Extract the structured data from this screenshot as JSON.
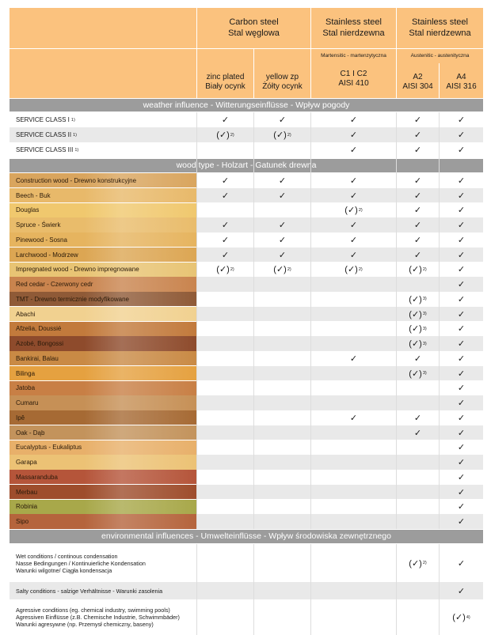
{
  "header": {
    "carbon": {
      "line1": "Carbon steel",
      "line2": "Stal węglowa"
    },
    "stainless1": {
      "line1": "Stainless steel",
      "line2": "Stal nierdzewna"
    },
    "stainless2": {
      "line1": "Stainless steel",
      "line2": "Stal nierdzewna"
    },
    "martensitic": "Martensitic - martenzytyczna",
    "austenitic": "Austenitic - austenityczna",
    "cols": [
      {
        "line1": "zinc plated",
        "line2": "Biały ocynk"
      },
      {
        "line1": "yellow zp",
        "line2": "Żółty ocynk"
      },
      {
        "line1": "C1 I C2",
        "line2": "AISI 410"
      },
      {
        "line1": "A2",
        "line2": "AISI 304"
      },
      {
        "line1": "A4",
        "line2": "AISI 316"
      }
    ]
  },
  "sections": {
    "weather": "weather influence - Witterungseinflüsse - Wpływ pogody",
    "wood": "wood type - Holzart - Gatunek drewna",
    "env": "environmental influences - Umwelteinflüsse - Wpływ środowiska zewnętrznego"
  },
  "weather_rows": [
    {
      "label": "SERVICE CLASS I",
      "sup": "1)",
      "marks": [
        "✓",
        "✓",
        "✓",
        "✓",
        "✓"
      ],
      "notes": [
        "",
        "",
        "",
        "",
        ""
      ]
    },
    {
      "label": "SERVICE CLASS II",
      "sup": "1)",
      "marks": [
        "(✓)",
        "(✓)",
        "✓",
        "✓",
        "✓"
      ],
      "notes": [
        "2)",
        "2)",
        "",
        "",
        ""
      ]
    },
    {
      "label": "SERVICE CLASS III",
      "sup": "1)",
      "marks": [
        "",
        "",
        "✓",
        "✓",
        "✓"
      ],
      "notes": [
        "",
        "",
        "",
        "",
        ""
      ]
    }
  ],
  "wood_rows": [
    {
      "label": "Construction wood - Drewno konstrukcyjne",
      "color": "#d9a55e",
      "marks": [
        "✓",
        "✓",
        "✓",
        "✓",
        "✓"
      ],
      "notes": [
        "",
        "",
        "",
        "",
        ""
      ]
    },
    {
      "label": "Beech - Buk",
      "color": "#e8b96a",
      "marks": [
        "✓",
        "✓",
        "✓",
        "✓",
        "✓"
      ],
      "notes": [
        "",
        "",
        "",
        "",
        ""
      ]
    },
    {
      "label": "Douglas",
      "color": "#f0c86e",
      "marks": [
        "",
        "",
        "(✓)",
        "✓",
        "✓"
      ],
      "notes": [
        "",
        "",
        "2)",
        "",
        ""
      ]
    },
    {
      "label": "Spruce - Świerk",
      "color": "#e9bc6b",
      "marks": [
        "✓",
        "✓",
        "✓",
        "✓",
        "✓"
      ],
      "notes": [
        "",
        "",
        "",
        "",
        ""
      ]
    },
    {
      "label": "Pinewood - Sosna",
      "color": "#e6b45f",
      "marks": [
        "✓",
        "✓",
        "✓",
        "✓",
        "✓"
      ],
      "notes": [
        "",
        "",
        "",
        "",
        ""
      ]
    },
    {
      "label": "Larchwood - Modrzew",
      "color": "#dca653",
      "marks": [
        "✓",
        "✓",
        "✓",
        "✓",
        "✓"
      ],
      "notes": [
        "",
        "",
        "",
        "",
        ""
      ]
    },
    {
      "label": "Impregnated wood - Drewno impregnowane",
      "color": "#e8c474",
      "marks": [
        "(✓)",
        "(✓)",
        "(✓)",
        "(✓)",
        "✓"
      ],
      "notes": [
        "2)",
        "2)",
        "2)",
        "2)",
        ""
      ]
    },
    {
      "label": "Red cedar - Czerwony cedr",
      "color": "#c9844e",
      "marks": [
        "",
        "",
        "",
        "",
        "✓"
      ],
      "notes": [
        "",
        "",
        "",
        "",
        ""
      ]
    },
    {
      "label": "TMT - Drewno termicznie modyfikowane",
      "color": "#8f5a37",
      "marks": [
        "",
        "",
        "",
        "(✓)",
        "✓"
      ],
      "notes": [
        "",
        "",
        "",
        "3)",
        ""
      ]
    },
    {
      "label": "Abachi",
      "color": "#f1d190",
      "marks": [
        "",
        "",
        "",
        "(✓)",
        "✓"
      ],
      "notes": [
        "",
        "",
        "",
        "3)",
        ""
      ]
    },
    {
      "label": "Afzelia, Doussié",
      "color": "#c27a3c",
      "marks": [
        "",
        "",
        "",
        "(✓)",
        "✓"
      ],
      "notes": [
        "",
        "",
        "",
        "3)",
        ""
      ]
    },
    {
      "label": "Azobé, Bongossi",
      "color": "#8e4b2c",
      "marks": [
        "",
        "",
        "",
        "(✓)",
        "✓"
      ],
      "notes": [
        "",
        "",
        "",
        "3)",
        ""
      ]
    },
    {
      "label": "Bankirai, Balau",
      "color": "#c98a45",
      "marks": [
        "",
        "",
        "✓",
        "✓",
        "✓"
      ],
      "notes": [
        "",
        "",
        "",
        "",
        ""
      ]
    },
    {
      "label": "Bilinga",
      "color": "#e5a140",
      "marks": [
        "",
        "",
        "",
        "(✓)",
        "✓"
      ],
      "notes": [
        "",
        "",
        "",
        "3)",
        ""
      ]
    },
    {
      "label": "Jatoba",
      "color": "#c87f45",
      "marks": [
        "",
        "",
        "",
        "",
        "✓"
      ],
      "notes": [
        "",
        "",
        "",
        "",
        ""
      ]
    },
    {
      "label": "Cumaru",
      "color": "#c69056",
      "marks": [
        "",
        "",
        "",
        "",
        "✓"
      ],
      "notes": [
        "",
        "",
        "",
        "",
        ""
      ]
    },
    {
      "label": "Ipê",
      "color": "#a66a34",
      "marks": [
        "",
        "",
        "✓",
        "✓",
        "✓"
      ],
      "notes": [
        "",
        "",
        "",
        "",
        ""
      ]
    },
    {
      "label": "Oak - Dąb",
      "color": "#c3935c",
      "marks": [
        "",
        "",
        "",
        "✓",
        "✓"
      ],
      "notes": [
        "",
        "",
        "",
        "",
        ""
      ]
    },
    {
      "label": "Eucalyptus - Eukaliptus",
      "color": "#e8b06a",
      "marks": [
        "",
        "",
        "",
        "",
        "✓"
      ],
      "notes": [
        "",
        "",
        "",
        "",
        ""
      ]
    },
    {
      "label": "Garapa",
      "color": "#ecc275",
      "marks": [
        "",
        "",
        "",
        "",
        "✓"
      ],
      "notes": [
        "",
        "",
        "",
        "",
        ""
      ]
    },
    {
      "label": "Massaranduba",
      "color": "#b5553a",
      "marks": [
        "",
        "",
        "",
        "",
        "✓"
      ],
      "notes": [
        "",
        "",
        "",
        "",
        ""
      ]
    },
    {
      "label": "Merbau",
      "color": "#9e4d2c",
      "marks": [
        "",
        "",
        "",
        "",
        "✓"
      ],
      "notes": [
        "",
        "",
        "",
        "",
        ""
      ]
    },
    {
      "label": "Robinia",
      "color": "#a8a84a",
      "marks": [
        "",
        "",
        "",
        "",
        "✓"
      ],
      "notes": [
        "",
        "",
        "",
        "",
        ""
      ]
    },
    {
      "label": "Sipo",
      "color": "#b5643c",
      "marks": [
        "",
        "",
        "",
        "",
        "✓"
      ],
      "notes": [
        "",
        "",
        "",
        "",
        ""
      ]
    }
  ],
  "env_rows": [
    {
      "lines": [
        "Wet conditions / continous condensation",
        "Nasse Bedingungen / Kontinuierliche Kondensation",
        "Warunki wilgotne/ Ciągła kondensacja"
      ],
      "marks": [
        "",
        "",
        "",
        "(✓)",
        "✓"
      ],
      "notes": [
        "",
        "",
        "",
        "2)",
        ""
      ]
    },
    {
      "lines": [
        "Salty conditions - salzige Verhältnisse - Warunki zasolenia"
      ],
      "marks": [
        "",
        "",
        "",
        "",
        "✓"
      ],
      "notes": [
        "",
        "",
        "",
        "",
        ""
      ]
    },
    {
      "lines": [
        "Agressive conditions (eg. chemical industry, swimming pools)",
        "Agressiven Einflüsse (z.B. Chemische Industrie, Schwimmbäder)",
        "Warunki agresywne (np. Przemysł chemiczny, baseny)"
      ],
      "marks": [
        "",
        "",
        "",
        "",
        "(✓)"
      ],
      "notes": [
        "",
        "",
        "",
        "",
        "4)"
      ]
    }
  ],
  "colors": {
    "header_bg": "#fbc27e",
    "section_bg": "#9c9c9c",
    "stripe": "#e9e9e9"
  }
}
